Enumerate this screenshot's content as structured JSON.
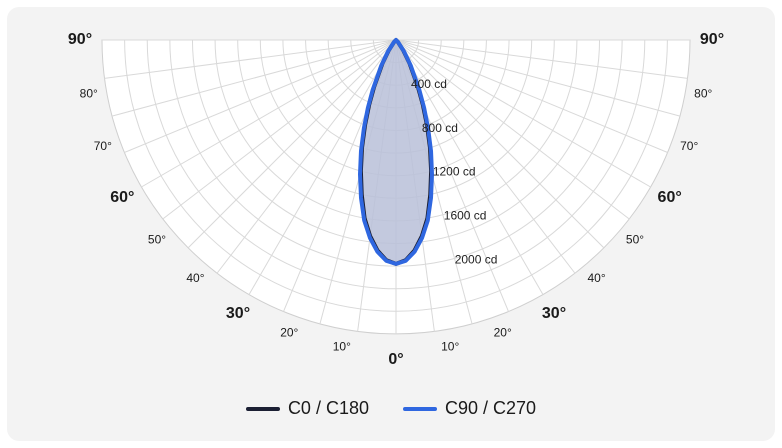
{
  "chart_data": {
    "type": "polar",
    "title": "",
    "angle_ticks": {
      "major": [
        {
          "deg": 0,
          "label": "0°"
        },
        {
          "deg": 30,
          "label": "30°"
        },
        {
          "deg": 60,
          "label": "60°"
        },
        {
          "deg": 90,
          "label": "90°"
        }
      ],
      "minor": [
        {
          "deg": 10,
          "label": "10°"
        },
        {
          "deg": 20,
          "label": "20°"
        },
        {
          "deg": 40,
          "label": "40°"
        },
        {
          "deg": 50,
          "label": "50°"
        },
        {
          "deg": 70,
          "label": "70°"
        },
        {
          "deg": 80,
          "label": "80°"
        }
      ],
      "grid_step_deg": 7.5
    },
    "radial_ticks": [
      {
        "value": 400,
        "label": "400 cd"
      },
      {
        "value": 800,
        "label": "800 cd"
      },
      {
        "value": 1200,
        "label": "1200 cd"
      },
      {
        "value": 1600,
        "label": "1600 cd"
      },
      {
        "value": 2000,
        "label": "2000 cd"
      }
    ],
    "radial_max": 2600,
    "unit": "cd",
    "series": [
      {
        "name": "C0 / C180",
        "color": "#1b1f33",
        "angles_deg": [
          0,
          2.5,
          5,
          7.5,
          10,
          12.5,
          15,
          17.5,
          20,
          22.5,
          25,
          30,
          35,
          45,
          90
        ],
        "values": [
          1980,
          1950,
          1870,
          1750,
          1600,
          1400,
          1200,
          1000,
          800,
          620,
          460,
          240,
          110,
          20,
          0
        ]
      },
      {
        "name": "C90 / C270",
        "color": "#2f67e0",
        "angles_deg": [
          0,
          2.5,
          5,
          7.5,
          10,
          12.5,
          15,
          17.5,
          20,
          22.5,
          25,
          30,
          35,
          45,
          90
        ],
        "values": [
          1980,
          1955,
          1880,
          1765,
          1620,
          1430,
          1230,
          1030,
          830,
          650,
          490,
          260,
          125,
          25,
          0
        ]
      }
    ],
    "legend_position": "bottom",
    "fill_color": "#b9bfd8"
  }
}
